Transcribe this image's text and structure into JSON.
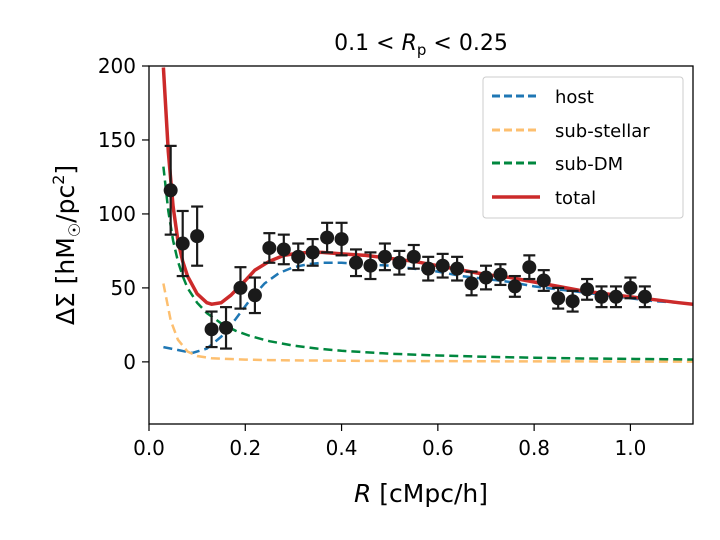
{
  "chart_data": {
    "type": "line",
    "title": {
      "prefix": "0.1 < ",
      "var": "R",
      "sub": "p",
      "suffix": " < 0.25"
    },
    "xlabel": {
      "var": "R",
      "unit": " [cMpc/h]"
    },
    "ylabel": {
      "prefix": "ΔΣ [hM",
      "sun": "☉",
      "mid": "/pc",
      "sup": "2",
      "suffix": "]"
    },
    "xlim": [
      0.0,
      1.13
    ],
    "ylim": [
      -42,
      200
    ],
    "xticks": [
      0.0,
      0.2,
      0.4,
      0.6,
      0.8,
      1.0
    ],
    "xtick_labels": [
      "0.0",
      "0.2",
      "0.4",
      "0.6",
      "0.8",
      "1.0"
    ],
    "yticks": [
      0,
      50,
      100,
      150,
      200
    ],
    "ytick_labels": [
      "0",
      "50",
      "100",
      "150",
      "200"
    ],
    "grid": false,
    "legend_position": "top-right",
    "colors": {
      "host": "#1f77b4",
      "sub_stellar": "#fdbf6f",
      "sub_dm": "#00873e",
      "total": "#cc2a2a",
      "points": "#1a1a1a"
    },
    "series": [
      {
        "name": "host",
        "style": "dashed",
        "color": "#1f77b4",
        "x": [
          0.03,
          0.06,
          0.09,
          0.12,
          0.15,
          0.18,
          0.21,
          0.24,
          0.27,
          0.3,
          0.33,
          0.36,
          0.4,
          0.45,
          0.5,
          0.55,
          0.6,
          0.65,
          0.7,
          0.75,
          0.8,
          0.85,
          0.9,
          0.95,
          1.0,
          1.05,
          1.1,
          1.13
        ],
        "y": [
          10,
          8,
          6,
          9,
          17,
          29,
          42,
          53,
          60,
          64,
          66,
          67,
          67,
          66,
          65,
          63,
          61,
          58,
          56,
          54,
          51,
          49,
          47,
          45,
          43,
          41,
          40,
          39
        ]
      },
      {
        "name": "sub-stellar",
        "style": "dashed",
        "color": "#fdbf6f",
        "x": [
          0.03,
          0.045,
          0.06,
          0.08,
          0.1,
          0.13,
          0.16,
          0.2,
          0.25,
          0.3,
          0.4,
          0.5,
          0.6,
          0.7,
          0.8,
          0.9,
          1.0,
          1.13
        ],
        "y": [
          53,
          28,
          15,
          7,
          4,
          2.5,
          2,
          1.5,
          1.2,
          1,
          0.8,
          0.6,
          0.5,
          0.4,
          0.3,
          0.3,
          0.2,
          0.2
        ]
      },
      {
        "name": "sub-DM",
        "style": "dashed",
        "color": "#00873e",
        "x": [
          0.03,
          0.04,
          0.05,
          0.06,
          0.07,
          0.08,
          0.1,
          0.12,
          0.15,
          0.18,
          0.21,
          0.25,
          0.3,
          0.35,
          0.4,
          0.5,
          0.6,
          0.7,
          0.8,
          0.9,
          1.0,
          1.13
        ],
        "y": [
          132,
          102,
          82,
          68,
          58,
          50,
          40,
          33,
          26,
          21,
          17.5,
          14,
          11,
          9,
          7.5,
          5.5,
          4.3,
          3.4,
          2.8,
          2.3,
          2,
          1.6
        ]
      },
      {
        "name": "total",
        "style": "solid",
        "color": "#cc2a2a",
        "x": [
          0.03,
          0.04,
          0.05,
          0.06,
          0.07,
          0.08,
          0.1,
          0.12,
          0.13,
          0.15,
          0.17,
          0.2,
          0.22,
          0.25,
          0.28,
          0.3,
          0.33,
          0.36,
          0.4,
          0.45,
          0.5,
          0.55,
          0.6,
          0.65,
          0.7,
          0.75,
          0.8,
          0.85,
          0.9,
          0.95,
          1.0,
          1.05,
          1.1,
          1.13
        ],
        "y": [
          199,
          142,
          105,
          82,
          68,
          58,
          46,
          40,
          39,
          40,
          45,
          55,
          62,
          68,
          72,
          73,
          74,
          74,
          73,
          72,
          70,
          68,
          65,
          62,
          59,
          57,
          54,
          51,
          48,
          46,
          44,
          42,
          40,
          39
        ]
      }
    ],
    "points": {
      "name": "data",
      "x": [
        0.045,
        0.07,
        0.1,
        0.13,
        0.16,
        0.19,
        0.22,
        0.25,
        0.28,
        0.31,
        0.34,
        0.37,
        0.4,
        0.43,
        0.46,
        0.49,
        0.52,
        0.55,
        0.58,
        0.61,
        0.64,
        0.67,
        0.7,
        0.73,
        0.76,
        0.79,
        0.82,
        0.85,
        0.88,
        0.91,
        0.94,
        0.97,
        1.0,
        1.03
      ],
      "y": [
        116,
        80,
        85,
        22,
        23,
        50,
        45,
        77,
        76,
        71,
        74,
        84,
        83,
        67,
        65,
        71,
        67,
        71,
        63,
        65,
        63,
        53,
        57,
        59,
        51,
        64,
        55,
        43,
        41,
        49,
        44,
        44,
        50,
        44
      ],
      "err": [
        30,
        22,
        20,
        12,
        14,
        14,
        12,
        10,
        10,
        9,
        9,
        10,
        11,
        9,
        9,
        9,
        8,
        8,
        8,
        8,
        8,
        8,
        8,
        7,
        7,
        8,
        7,
        7,
        7,
        7,
        7,
        7,
        7,
        7
      ]
    },
    "legend": [
      "host",
      "sub-stellar",
      "sub-DM",
      "total"
    ]
  }
}
